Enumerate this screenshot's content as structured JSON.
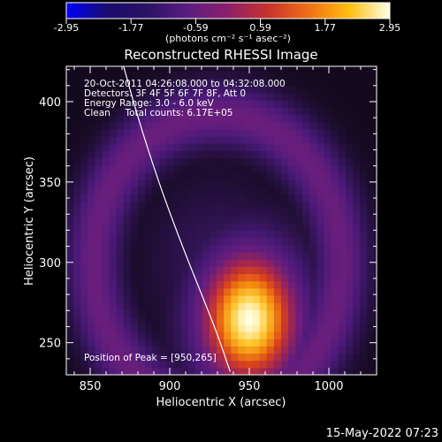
{
  "chart_data": {
    "type": "heatmap",
    "title": "Reconstructed RHESSI Image",
    "xlabel": "Heliocentric X (arcsec)",
    "ylabel": "Heliocentric Y (arcsec)",
    "xlim": [
      835,
      1030
    ],
    "ylim": [
      230,
      422
    ],
    "xticks": [
      850,
      900,
      950,
      1000
    ],
    "yticks": [
      250,
      300,
      350,
      400
    ],
    "colorbar": {
      "range": [
        -2.95,
        2.95
      ],
      "ticks": [
        "-2.95",
        "-1.77",
        "-0.59",
        "0.59",
        "1.77",
        "2.95"
      ],
      "units_label": "(photons cm⁻² s⁻¹ asec⁻²)",
      "colormap": [
        "#0000ff",
        "#1a0c6e",
        "#2b1265",
        "#5a1d83",
        "#8c1f6a",
        "#c8322e",
        "#f07014",
        "#ffbf10",
        "#ffffe8"
      ]
    },
    "annotations": [
      "20-Oct-2011 04:26:08.000 to 04:32:08.000",
      "Detectors: 3F 4F 5F 6F 7F 8F, Att 0",
      "Energy Range: 3.0 - 6.0 keV",
      "Clean     Total counts: 6.17E+05"
    ],
    "peak": {
      "label": "Position of Peak = [950,265]",
      "x": 950,
      "y": 265
    },
    "limb_points": [
      [
        871,
        422
      ],
      [
        880,
        390
      ],
      [
        893,
        350
      ],
      [
        906,
        315
      ],
      [
        918,
        285
      ],
      [
        929,
        258
      ],
      [
        938,
        232
      ]
    ],
    "timestamp": "15-May-2022 07:23"
  }
}
